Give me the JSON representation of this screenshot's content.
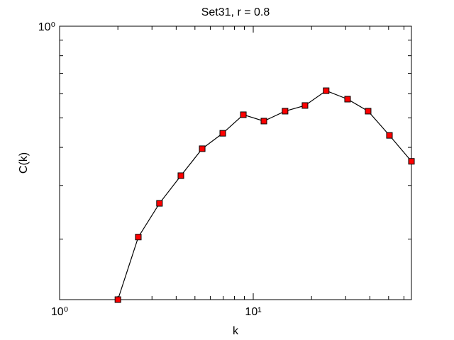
{
  "chart_data": {
    "type": "line",
    "title": "Set31, r = 0.8",
    "x_label": "k",
    "y_label": "C(k)",
    "x_scale": "log",
    "y_scale": "log",
    "x": [
      2.0,
      2.55,
      3.28,
      4.23,
      5.45,
      6.96,
      8.89,
      11.35,
      14.6,
      18.5,
      23.8,
      30.7,
      39.2,
      50.5,
      65.6
    ],
    "series": [
      {
        "name": "C(k)",
        "color": "#ff0000",
        "line_color": "#000000",
        "values": [
          0.1265,
          0.203,
          0.262,
          0.323,
          0.396,
          0.445,
          0.512,
          0.488,
          0.526,
          0.549,
          0.614,
          0.576,
          0.526,
          0.438,
          0.36
        ]
      }
    ],
    "xlim": [
      1,
      65.6
    ],
    "ylim": [
      0.1265,
      1
    ],
    "xticks": [
      {
        "value": 1,
        "label": "10⁰"
      },
      {
        "value": 10,
        "label": "10¹"
      }
    ],
    "yticks": [
      {
        "value": 1,
        "label": "10⁰"
      }
    ],
    "xminorticks": [
      2,
      3,
      4,
      5,
      6,
      7,
      8,
      9,
      20,
      30,
      40,
      50,
      60
    ],
    "yminorticks": [
      0.2,
      0.3,
      0.4,
      0.5,
      0.6,
      0.7,
      0.8,
      0.9
    ]
  }
}
